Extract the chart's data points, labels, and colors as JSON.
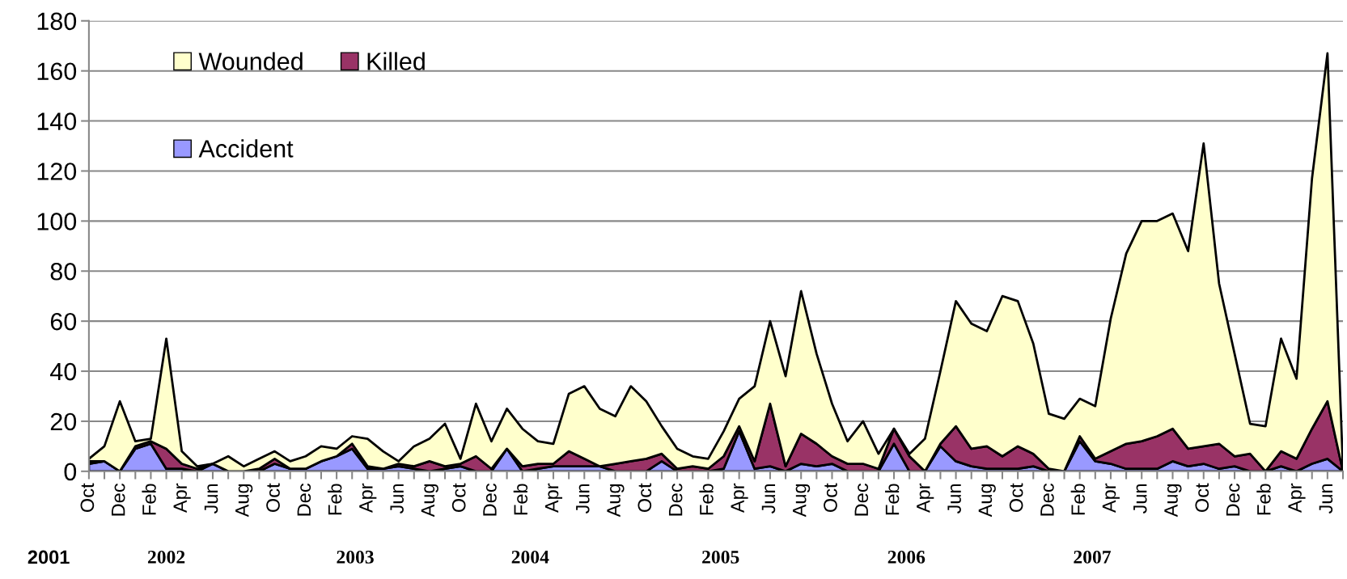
{
  "chart_data": {
    "type": "area",
    "stacked": true,
    "categories": [
      "Oct",
      null,
      "Dec",
      null,
      "Feb",
      null,
      "Apr",
      null,
      "Jun",
      null,
      "Aug",
      null,
      "Oct",
      null,
      "Dec",
      null,
      "Feb",
      null,
      "Apr",
      null,
      "Jun",
      null,
      "Aug",
      null,
      "Oct",
      null,
      "Dec",
      null,
      "Feb",
      null,
      "Apr",
      null,
      "Jun",
      null,
      "Aug",
      null,
      "Oct",
      null,
      "Dec",
      null,
      "Feb",
      null,
      "Apr",
      null,
      "Jun",
      null,
      "Aug",
      null,
      "Oct",
      null,
      "Dec",
      null,
      "Feb",
      null,
      "Apr",
      null,
      "Jun",
      null,
      "Aug",
      null,
      "Oct",
      null,
      "Dec",
      null,
      "Feb",
      null,
      "Apr",
      null,
      "Jun",
      null,
      "Aug",
      null,
      "Oct",
      null,
      "Dec",
      null,
      "Feb",
      null,
      "Apr",
      null,
      "Jun",
      null
    ],
    "series": [
      {
        "name": "Accident",
        "color": "#9999ff",
        "values": [
          3,
          4,
          0,
          9,
          11,
          1,
          1,
          0,
          3,
          0,
          0,
          0,
          3,
          1,
          1,
          4,
          6,
          9,
          1,
          1,
          2,
          1,
          0,
          1,
          2,
          0,
          0,
          9,
          0,
          1,
          2,
          2,
          2,
          2,
          0,
          0,
          0,
          4,
          0,
          0,
          0,
          1,
          16,
          1,
          2,
          0,
          3,
          2,
          3,
          0,
          0,
          0,
          11,
          0,
          0,
          10,
          4,
          2,
          1,
          1,
          1,
          2,
          0,
          0,
          12,
          4,
          3,
          1,
          1,
          1,
          4,
          2,
          3,
          1,
          2,
          0,
          0,
          2,
          0,
          3,
          5,
          0
        ]
      },
      {
        "name": "Killed",
        "color": "#993366",
        "values": [
          1,
          0,
          0,
          1,
          1,
          8,
          2,
          1,
          0,
          0,
          0,
          1,
          2,
          0,
          0,
          0,
          0,
          2,
          1,
          0,
          1,
          1,
          4,
          1,
          1,
          6,
          1,
          0,
          2,
          2,
          1,
          6,
          3,
          0,
          3,
          4,
          5,
          3,
          1,
          2,
          1,
          5,
          2,
          3,
          25,
          2,
          12,
          9,
          3,
          3,
          3,
          1,
          6,
          6,
          0,
          1,
          14,
          7,
          9,
          5,
          9,
          5,
          1,
          0,
          2,
          1,
          5,
          10,
          11,
          13,
          13,
          7,
          7,
          10,
          4,
          7,
          0,
          6,
          5,
          14,
          23,
          0
        ]
      },
      {
        "name": "Wounded",
        "color": "#ffffcc",
        "values": [
          1,
          6,
          28,
          2,
          1,
          44,
          5,
          1,
          0,
          6,
          2,
          4,
          3,
          3,
          5,
          6,
          3,
          3,
          11,
          7,
          1,
          8,
          9,
          17,
          2,
          21,
          11,
          16,
          15,
          9,
          8,
          23,
          29,
          23,
          19,
          30,
          23,
          11,
          8,
          4,
          4,
          10,
          11,
          30,
          33,
          36,
          57,
          36,
          21,
          9,
          17,
          6,
          0,
          1,
          13,
          29,
          50,
          50,
          46,
          64,
          58,
          44,
          22,
          21,
          15,
          21,
          53,
          76,
          88,
          86,
          86,
          79,
          121,
          64,
          41,
          12,
          18,
          45,
          32,
          100,
          139,
          1
        ]
      }
    ],
    "ylim": [
      0,
      180
    ],
    "yticks": [
      0,
      20,
      40,
      60,
      80,
      100,
      120,
      140,
      160,
      180
    ],
    "grid": "y",
    "legend": "top left",
    "annotations": [
      "2001",
      "2002",
      "2003",
      "2004",
      "2005",
      "2006",
      "2007"
    ]
  }
}
